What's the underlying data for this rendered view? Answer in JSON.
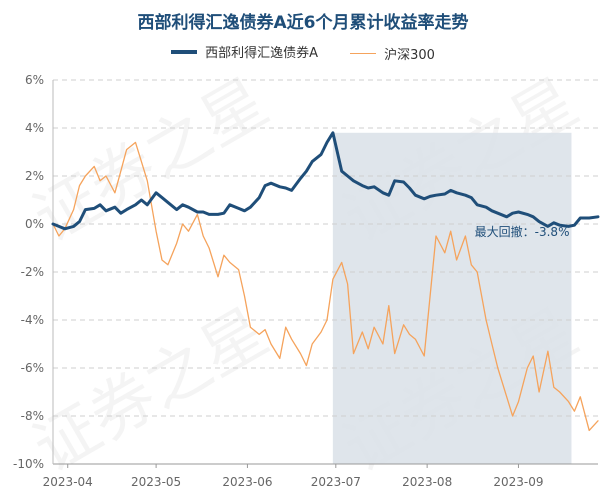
{
  "chart_data": {
    "type": "line",
    "title": "西部利得汇逸债券A近6个月累计收益率走势",
    "x_ticks": [
      "2023-04",
      "2023-05",
      "2023-06",
      "2023-07",
      "2023-08",
      "2023-09"
    ],
    "y_ticks": [
      "6%",
      "4%",
      "2%",
      "0%",
      "-2%",
      "-4%",
      "-6%",
      "-8%",
      "-10%"
    ],
    "ylim": [
      -10,
      6
    ],
    "grid": true,
    "legend_position": "top-center",
    "x_start": "2023-03-27",
    "x_end": "2023-09-28",
    "series": [
      {
        "name": "西部利得汇逸债券A",
        "color": "#1f4e79",
        "points": [
          [
            "2023-03-27",
            0.0
          ],
          [
            "2023-03-29",
            -0.1
          ],
          [
            "2023-03-31",
            -0.2
          ],
          [
            "2023-04-03",
            -0.1
          ],
          [
            "2023-04-05",
            0.1
          ],
          [
            "2023-04-07",
            0.6
          ],
          [
            "2023-04-10",
            0.65
          ],
          [
            "2023-04-12",
            0.8
          ],
          [
            "2023-04-14",
            0.55
          ],
          [
            "2023-04-17",
            0.7
          ],
          [
            "2023-04-19",
            0.45
          ],
          [
            "2023-04-21",
            0.6
          ],
          [
            "2023-04-24",
            0.8
          ],
          [
            "2023-04-26",
            1.0
          ],
          [
            "2023-04-28",
            0.8
          ],
          [
            "2023-05-01",
            1.3
          ],
          [
            "2023-05-03",
            1.1
          ],
          [
            "2023-05-05",
            0.9
          ],
          [
            "2023-05-08",
            0.6
          ],
          [
            "2023-05-10",
            0.8
          ],
          [
            "2023-05-12",
            0.7
          ],
          [
            "2023-05-15",
            0.5
          ],
          [
            "2023-05-17",
            0.5
          ],
          [
            "2023-05-19",
            0.4
          ],
          [
            "2023-05-22",
            0.4
          ],
          [
            "2023-05-24",
            0.45
          ],
          [
            "2023-05-26",
            0.8
          ],
          [
            "2023-05-29",
            0.65
          ],
          [
            "2023-05-31",
            0.55
          ],
          [
            "2023-06-02",
            0.7
          ],
          [
            "2023-06-05",
            1.1
          ],
          [
            "2023-06-07",
            1.6
          ],
          [
            "2023-06-09",
            1.7
          ],
          [
            "2023-06-12",
            1.55
          ],
          [
            "2023-06-14",
            1.5
          ],
          [
            "2023-06-16",
            1.4
          ],
          [
            "2023-06-19",
            1.9
          ],
          [
            "2023-06-21",
            2.2
          ],
          [
            "2023-06-23",
            2.6
          ],
          [
            "2023-06-26",
            2.9
          ],
          [
            "2023-06-28",
            3.4
          ],
          [
            "2023-06-30",
            3.8
          ],
          [
            "2023-07-03",
            2.2
          ],
          [
            "2023-07-05",
            2.0
          ],
          [
            "2023-07-07",
            1.8
          ],
          [
            "2023-07-10",
            1.6
          ],
          [
            "2023-07-12",
            1.5
          ],
          [
            "2023-07-14",
            1.55
          ],
          [
            "2023-07-17",
            1.3
          ],
          [
            "2023-07-19",
            1.2
          ],
          [
            "2023-07-21",
            1.8
          ],
          [
            "2023-07-24",
            1.75
          ],
          [
            "2023-07-26",
            1.5
          ],
          [
            "2023-07-28",
            1.2
          ],
          [
            "2023-07-31",
            1.05
          ],
          [
            "2023-08-02",
            1.15
          ],
          [
            "2023-08-04",
            1.2
          ],
          [
            "2023-08-07",
            1.25
          ],
          [
            "2023-08-09",
            1.4
          ],
          [
            "2023-08-11",
            1.3
          ],
          [
            "2023-08-14",
            1.2
          ],
          [
            "2023-08-16",
            1.1
          ],
          [
            "2023-08-18",
            0.8
          ],
          [
            "2023-08-21",
            0.7
          ],
          [
            "2023-08-23",
            0.55
          ],
          [
            "2023-08-25",
            0.45
          ],
          [
            "2023-08-28",
            0.3
          ],
          [
            "2023-08-30",
            0.45
          ],
          [
            "2023-09-01",
            0.5
          ],
          [
            "2023-09-04",
            0.4
          ],
          [
            "2023-09-06",
            0.3
          ],
          [
            "2023-09-08",
            0.1
          ],
          [
            "2023-09-11",
            -0.1
          ],
          [
            "2023-09-13",
            0.05
          ],
          [
            "2023-09-15",
            -0.05
          ],
          [
            "2023-09-18",
            -0.1
          ],
          [
            "2023-09-20",
            -0.05
          ],
          [
            "2023-09-22",
            0.25
          ],
          [
            "2023-09-25",
            0.25
          ],
          [
            "2023-09-28",
            0.3
          ]
        ]
      },
      {
        "name": "沪深300",
        "color": "#f5a35c",
        "points": [
          [
            "2023-03-27",
            0.0
          ],
          [
            "2023-03-29",
            -0.5
          ],
          [
            "2023-03-31",
            -0.2
          ],
          [
            "2023-04-03",
            0.6
          ],
          [
            "2023-04-05",
            1.6
          ],
          [
            "2023-04-07",
            2.0
          ],
          [
            "2023-04-10",
            2.4
          ],
          [
            "2023-04-12",
            1.8
          ],
          [
            "2023-04-14",
            2.0
          ],
          [
            "2023-04-17",
            1.3
          ],
          [
            "2023-04-19",
            2.2
          ],
          [
            "2023-04-21",
            3.1
          ],
          [
            "2023-04-24",
            3.4
          ],
          [
            "2023-04-26",
            2.6
          ],
          [
            "2023-04-28",
            1.8
          ],
          [
            "2023-05-01",
            -0.3
          ],
          [
            "2023-05-03",
            -1.5
          ],
          [
            "2023-05-05",
            -1.7
          ],
          [
            "2023-05-08",
            -0.8
          ],
          [
            "2023-05-10",
            0.0
          ],
          [
            "2023-05-12",
            -0.3
          ],
          [
            "2023-05-15",
            0.4
          ],
          [
            "2023-05-17",
            -0.5
          ],
          [
            "2023-05-19",
            -1.0
          ],
          [
            "2023-05-22",
            -2.2
          ],
          [
            "2023-05-24",
            -1.3
          ],
          [
            "2023-05-26",
            -1.6
          ],
          [
            "2023-05-29",
            -1.9
          ],
          [
            "2023-05-31",
            -3.0
          ],
          [
            "2023-06-02",
            -4.3
          ],
          [
            "2023-06-05",
            -4.6
          ],
          [
            "2023-06-07",
            -4.4
          ],
          [
            "2023-06-09",
            -5.0
          ],
          [
            "2023-06-12",
            -5.6
          ],
          [
            "2023-06-14",
            -4.3
          ],
          [
            "2023-06-16",
            -4.8
          ],
          [
            "2023-06-19",
            -5.4
          ],
          [
            "2023-06-21",
            -5.9
          ],
          [
            "2023-06-23",
            -5.0
          ],
          [
            "2023-06-26",
            -4.5
          ],
          [
            "2023-06-28",
            -4.0
          ],
          [
            "2023-06-30",
            -2.3
          ],
          [
            "2023-07-03",
            -1.6
          ],
          [
            "2023-07-05",
            -2.5
          ],
          [
            "2023-07-07",
            -5.4
          ],
          [
            "2023-07-10",
            -4.5
          ],
          [
            "2023-07-12",
            -5.2
          ],
          [
            "2023-07-14",
            -4.3
          ],
          [
            "2023-07-17",
            -5.0
          ],
          [
            "2023-07-19",
            -3.4
          ],
          [
            "2023-07-21",
            -5.4
          ],
          [
            "2023-07-24",
            -4.2
          ],
          [
            "2023-07-26",
            -4.6
          ],
          [
            "2023-07-28",
            -4.8
          ],
          [
            "2023-07-31",
            -5.5
          ],
          [
            "2023-08-02",
            -3.0
          ],
          [
            "2023-08-04",
            -0.5
          ],
          [
            "2023-08-07",
            -1.2
          ],
          [
            "2023-08-09",
            -0.3
          ],
          [
            "2023-08-11",
            -1.5
          ],
          [
            "2023-08-14",
            -0.5
          ],
          [
            "2023-08-16",
            -1.7
          ],
          [
            "2023-08-18",
            -2.0
          ],
          [
            "2023-08-21",
            -4.0
          ],
          [
            "2023-08-23",
            -5.0
          ],
          [
            "2023-08-25",
            -6.0
          ],
          [
            "2023-08-28",
            -7.2
          ],
          [
            "2023-08-30",
            -8.0
          ],
          [
            "2023-09-01",
            -7.4
          ],
          [
            "2023-09-04",
            -6.0
          ],
          [
            "2023-09-06",
            -5.5
          ],
          [
            "2023-09-08",
            -7.0
          ],
          [
            "2023-09-11",
            -5.3
          ],
          [
            "2023-09-13",
            -6.8
          ],
          [
            "2023-09-15",
            -7.0
          ],
          [
            "2023-09-18",
            -7.4
          ],
          [
            "2023-09-20",
            -7.8
          ],
          [
            "2023-09-22",
            -7.2
          ],
          [
            "2023-09-25",
            -8.6
          ],
          [
            "2023-09-28",
            -8.2
          ]
        ]
      }
    ],
    "max_drawdown": {
      "label": "最大回撤：-3.8%",
      "start": "2023-06-30",
      "end": "2023-09-19",
      "shade_color": "#d9e1e8"
    }
  }
}
